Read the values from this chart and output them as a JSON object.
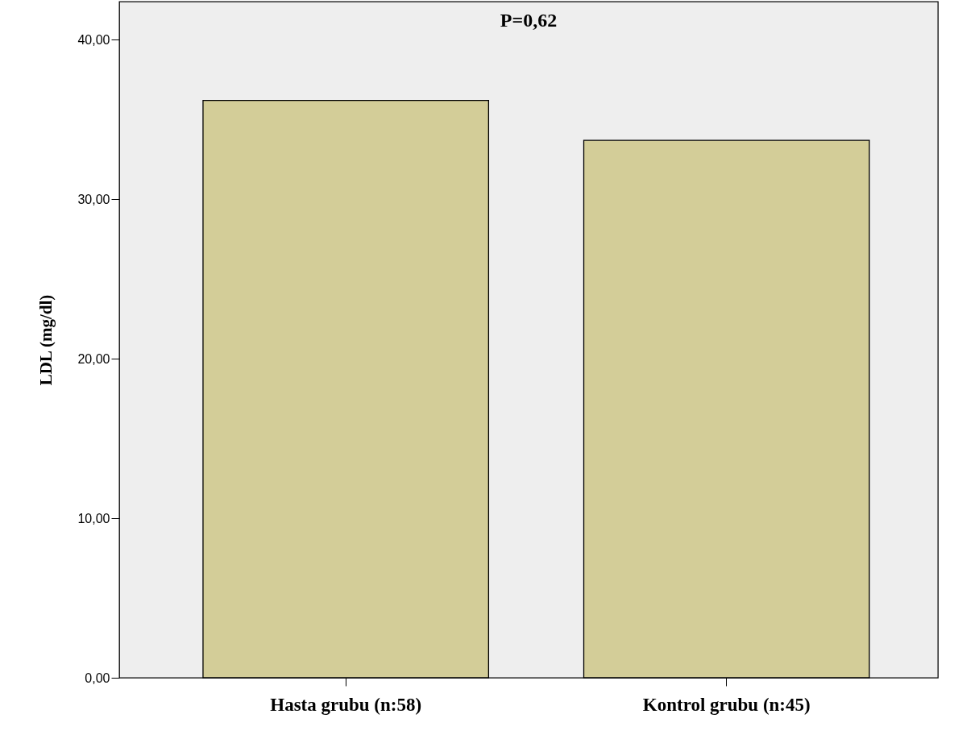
{
  "chart_data": {
    "type": "bar",
    "ylabel": "LDL (mg/dl)",
    "categories": [
      "Hasta grubu (n:58)",
      "Kontrol  grubu (n:45)"
    ],
    "values": [
      36.2,
      33.7
    ],
    "color": "#d3cd98",
    "ylim": [
      0,
      42.4
    ],
    "yticks": [
      {
        "value": 0,
        "label": "0,00"
      },
      {
        "value": 10,
        "label": "10,00"
      },
      {
        "value": 20,
        "label": "20,00"
      },
      {
        "value": 30,
        "label": "30,00"
      },
      {
        "value": 40,
        "label": "40,00"
      }
    ],
    "grid": false,
    "annotations": [
      "P=0,62"
    ]
  }
}
